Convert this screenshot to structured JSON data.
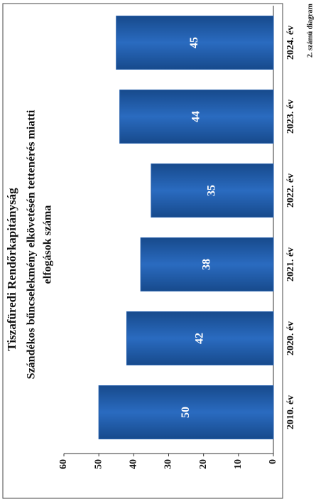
{
  "chart_data": {
    "type": "bar",
    "orientation": "rotated",
    "title": "Tiszafüredi Rendőrkapitányság",
    "subtitle": [
      "Szándékos bűncselekmény elkövetésén tettenérés miatti",
      "elfogások száma"
    ],
    "footnote": "2. számú diagram",
    "categories": [
      "2010. év",
      "2020. év",
      "2021. év",
      "2022. év",
      "2023. év",
      "2024. év"
    ],
    "values": [
      50,
      42,
      38,
      35,
      44,
      45
    ],
    "color": "#1f5aa8",
    "ylim": [
      0,
      60
    ],
    "yticks": [
      0,
      10,
      20,
      30,
      40,
      50,
      60
    ],
    "grid": false
  }
}
